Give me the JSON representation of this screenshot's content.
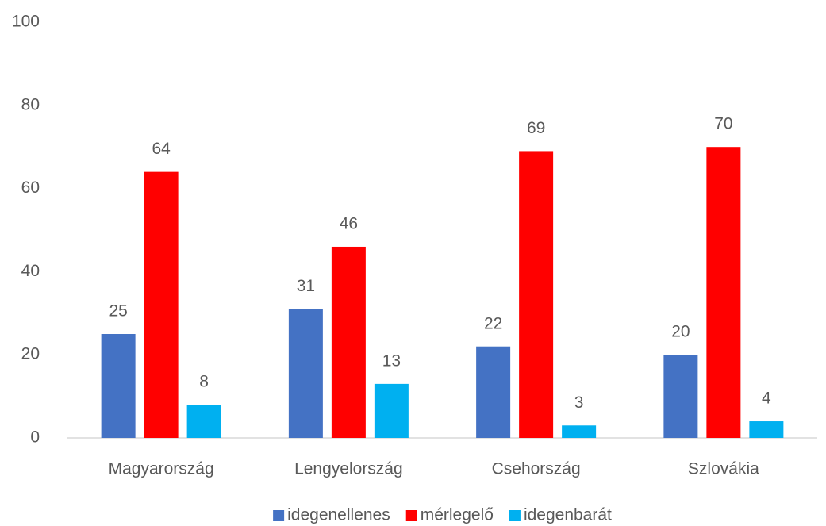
{
  "chart_data": {
    "type": "bar",
    "categories": [
      "Magyarország",
      "Lengyelország",
      "Csehország",
      "Szlovákia"
    ],
    "series": [
      {
        "name": "idegenellenes",
        "color": "#4472c4",
        "values": [
          25,
          31,
          22,
          20
        ]
      },
      {
        "name": "mérlegelő",
        "color": "#ff0000",
        "values": [
          64,
          46,
          69,
          70
        ]
      },
      {
        "name": "idegenbarát",
        "color": "#00b0f0",
        "values": [
          8,
          13,
          3,
          4
        ]
      }
    ],
    "ylim": [
      0,
      100
    ],
    "yticks": [
      0,
      20,
      40,
      60,
      80,
      100
    ],
    "grid": false,
    "legend": "bottom"
  }
}
